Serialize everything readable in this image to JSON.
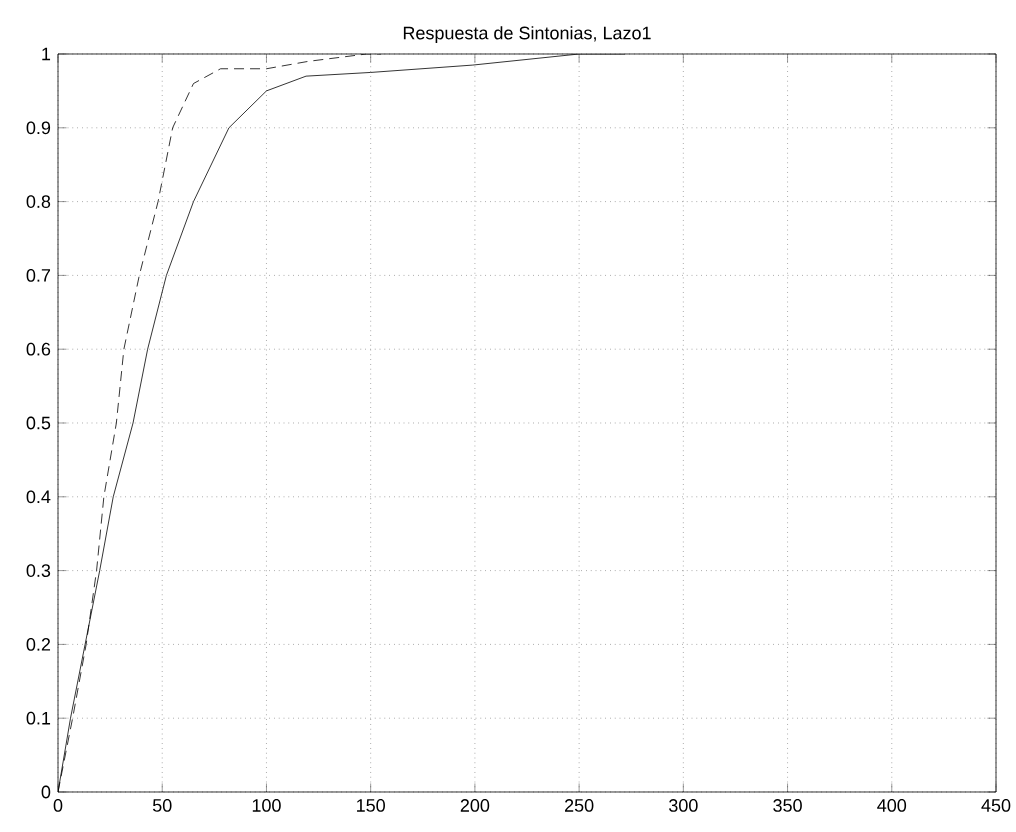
{
  "chart_data": {
    "type": "line",
    "title": "Respuesta de Sintonias, Lazo1",
    "series": [
      {
        "color": "#000000",
        "line_style": "solid",
        "x": [
          0,
          6,
          13,
          20,
          26.5,
          36,
          43,
          52,
          65,
          82,
          100,
          119,
          150,
          199,
          250,
          272
        ],
        "values": [
          0,
          0.1,
          0.2,
          0.3,
          0.4,
          0.5,
          0.6,
          0.7,
          0.8,
          0.9,
          0.95,
          0.97,
          0.975,
          0.985,
          1.0,
          1.0
        ]
      },
      {
        "color": "#000000",
        "line_style": "dashed",
        "x": [
          0,
          7,
          13.5,
          18.5,
          22,
          28,
          31.6,
          39,
          48,
          55,
          65,
          78,
          100,
          120,
          148,
          155
        ],
        "values": [
          0,
          0.1,
          0.2,
          0.3,
          0.4,
          0.5,
          0.6,
          0.7,
          0.8,
          0.9,
          0.96,
          0.98,
          0.98,
          0.99,
          1.0,
          1.0
        ]
      }
    ],
    "xlim": [
      0,
      450
    ],
    "xticks": [
      0,
      50,
      100,
      150,
      200,
      250,
      300,
      350,
      400,
      450
    ],
    "ylim": [
      0,
      1
    ],
    "yticks": [
      0,
      0.1,
      0.2,
      0.3,
      0.4,
      0.5,
      0.6,
      0.7,
      0.8,
      0.9,
      1
    ],
    "grid": true
  }
}
